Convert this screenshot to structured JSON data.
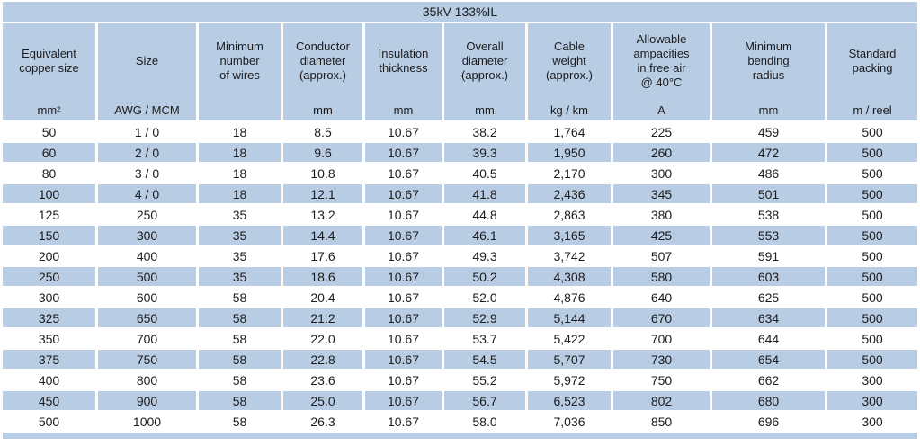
{
  "table": {
    "title": "35kV 133%IL",
    "columns": [
      {
        "id": "equivalent-copper-size",
        "label": "Equivalent\ncopper size",
        "unit": "mm²"
      },
      {
        "id": "size",
        "label": "Size",
        "unit": "AWG / MCM"
      },
      {
        "id": "minimum-number-of-wires",
        "label": "Minimum\nnumber\nof wires",
        "unit": ""
      },
      {
        "id": "conductor-diameter",
        "label": "Conductor\ndiameter\n(approx.)",
        "unit": "mm"
      },
      {
        "id": "insulation-thickness",
        "label": "Insulation\nthickness",
        "unit": "mm"
      },
      {
        "id": "overall-diameter",
        "label": "Overall\ndiameter\n(approx.)",
        "unit": "mm"
      },
      {
        "id": "cable-weight",
        "label": "Cable\nweight\n(approx.)",
        "unit": "kg / km"
      },
      {
        "id": "allowable-ampacities",
        "label": "Allowable\nampacities\nin free air\n@ 40°C",
        "unit": "A"
      },
      {
        "id": "minimum-bending-radius",
        "label": "Minimum\nbending\nradius",
        "unit": "mm"
      },
      {
        "id": "standard-packing",
        "label": "Standard\npacking",
        "unit": "m / reel"
      }
    ],
    "rows": [
      [
        "50",
        "1 / 0",
        "18",
        "8.5",
        "10.67",
        "38.2",
        "1,764",
        "225",
        "459",
        "500"
      ],
      [
        "60",
        "2 / 0",
        "18",
        "9.6",
        "10.67",
        "39.3",
        "1,950",
        "260",
        "472",
        "500"
      ],
      [
        "80",
        "3 / 0",
        "18",
        "10.8",
        "10.67",
        "40.5",
        "2,170",
        "300",
        "486",
        "500"
      ],
      [
        "100",
        "4 / 0",
        "18",
        "12.1",
        "10.67",
        "41.8",
        "2,436",
        "345",
        "501",
        "500"
      ],
      [
        "125",
        "250",
        "35",
        "13.2",
        "10.67",
        "44.8",
        "2,863",
        "380",
        "538",
        "500"
      ],
      [
        "150",
        "300",
        "35",
        "14.4",
        "10.67",
        "46.1",
        "3,165",
        "425",
        "553",
        "500"
      ],
      [
        "200",
        "400",
        "35",
        "17.6",
        "10.67",
        "49.3",
        "3,742",
        "507",
        "591",
        "500"
      ],
      [
        "250",
        "500",
        "35",
        "18.6",
        "10.67",
        "50.2",
        "4,308",
        "580",
        "603",
        "500"
      ],
      [
        "300",
        "600",
        "58",
        "20.4",
        "10.67",
        "52.0",
        "4,876",
        "640",
        "625",
        "500"
      ],
      [
        "325",
        "650",
        "58",
        "21.2",
        "10.67",
        "52.9",
        "5,144",
        "670",
        "634",
        "500"
      ],
      [
        "350",
        "700",
        "58",
        "22.0",
        "10.67",
        "53.7",
        "5,422",
        "700",
        "644",
        "500"
      ],
      [
        "375",
        "750",
        "58",
        "22.8",
        "10.67",
        "54.5",
        "5,707",
        "730",
        "654",
        "500"
      ],
      [
        "400",
        "800",
        "58",
        "23.6",
        "10.67",
        "55.2",
        "5,972",
        "750",
        "662",
        "300"
      ],
      [
        "450",
        "900",
        "58",
        "25.0",
        "10.67",
        "56.7",
        "6,523",
        "802",
        "680",
        "300"
      ],
      [
        "500",
        "1000",
        "58",
        "26.3",
        "10.67",
        "58.0",
        "7,036",
        "850",
        "696",
        "300"
      ]
    ]
  },
  "colors": {
    "accent_blue": "#b8cce4",
    "row_alt": "#b8cce4",
    "text": "#1c1c1c",
    "background": "#ffffff"
  }
}
